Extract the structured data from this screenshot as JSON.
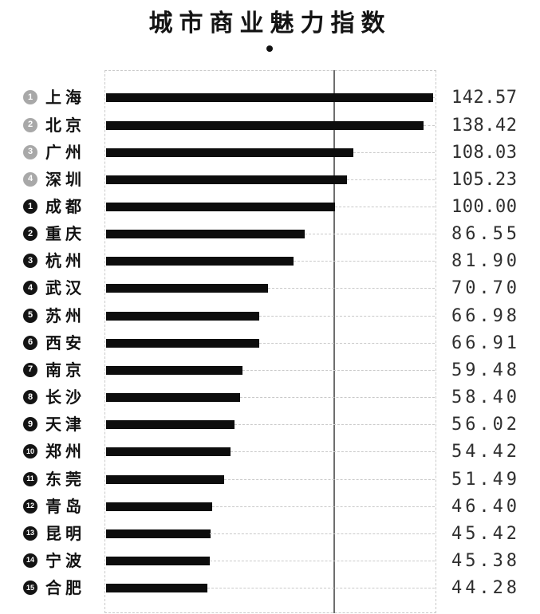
{
  "title": "城市商业魅力指数",
  "legend_marker": "●",
  "colors": {
    "bar": "#0d0d0d",
    "badge_first_tier": "#a8a8a8",
    "badge_new_first_tier": "#141414",
    "reference_line": "#6e6e6e",
    "grid_dash": "#c9c9c9",
    "value_text": "#2f2f2f",
    "title_text": "#141414"
  },
  "chart_data": {
    "type": "bar",
    "orientation": "horizontal",
    "title": "城市商业魅力指数",
    "xlabel": "",
    "ylabel": "",
    "xlim": [
      0,
      143.75
    ],
    "reference_line": 100.0,
    "grid": "dashed-trailing-lines",
    "legend_position": "top-center",
    "categories": [
      "上海",
      "北京",
      "广州",
      "深圳",
      "成都",
      "重庆",
      "杭州",
      "武汉",
      "苏州",
      "西安",
      "南京",
      "长沙",
      "天津",
      "郑州",
      "东莞",
      "青岛",
      "昆明",
      "宁波",
      "合肥"
    ],
    "values": [
      142.57,
      138.42,
      108.03,
      105.23,
      100.0,
      86.55,
      81.9,
      70.7,
      66.98,
      66.91,
      59.48,
      58.4,
      56.02,
      54.42,
      51.49,
      46.4,
      45.42,
      45.38,
      44.28
    ],
    "value_labels": [
      "142.57",
      "138.42",
      "108.03",
      "105.23",
      "100.00",
      "86.55",
      "81.90",
      "70.70",
      "66.98",
      "66.91",
      "59.48",
      "58.40",
      "56.02",
      "54.42",
      "51.49",
      "46.40",
      "45.42",
      "45.38",
      "44.28"
    ],
    "badges": [
      {
        "num": "1",
        "tier": "first_tier"
      },
      {
        "num": "2",
        "tier": "first_tier"
      },
      {
        "num": "3",
        "tier": "first_tier"
      },
      {
        "num": "4",
        "tier": "first_tier"
      },
      {
        "num": "1",
        "tier": "new_first_tier"
      },
      {
        "num": "2",
        "tier": "new_first_tier"
      },
      {
        "num": "3",
        "tier": "new_first_tier"
      },
      {
        "num": "4",
        "tier": "new_first_tier"
      },
      {
        "num": "5",
        "tier": "new_first_tier"
      },
      {
        "num": "6",
        "tier": "new_first_tier"
      },
      {
        "num": "7",
        "tier": "new_first_tier"
      },
      {
        "num": "8",
        "tier": "new_first_tier"
      },
      {
        "num": "9",
        "tier": "new_first_tier"
      },
      {
        "num": "10",
        "tier": "new_first_tier"
      },
      {
        "num": "11",
        "tier": "new_first_tier"
      },
      {
        "num": "12",
        "tier": "new_first_tier"
      },
      {
        "num": "13",
        "tier": "new_first_tier"
      },
      {
        "num": "14",
        "tier": "new_first_tier"
      },
      {
        "num": "15",
        "tier": "new_first_tier"
      }
    ]
  }
}
